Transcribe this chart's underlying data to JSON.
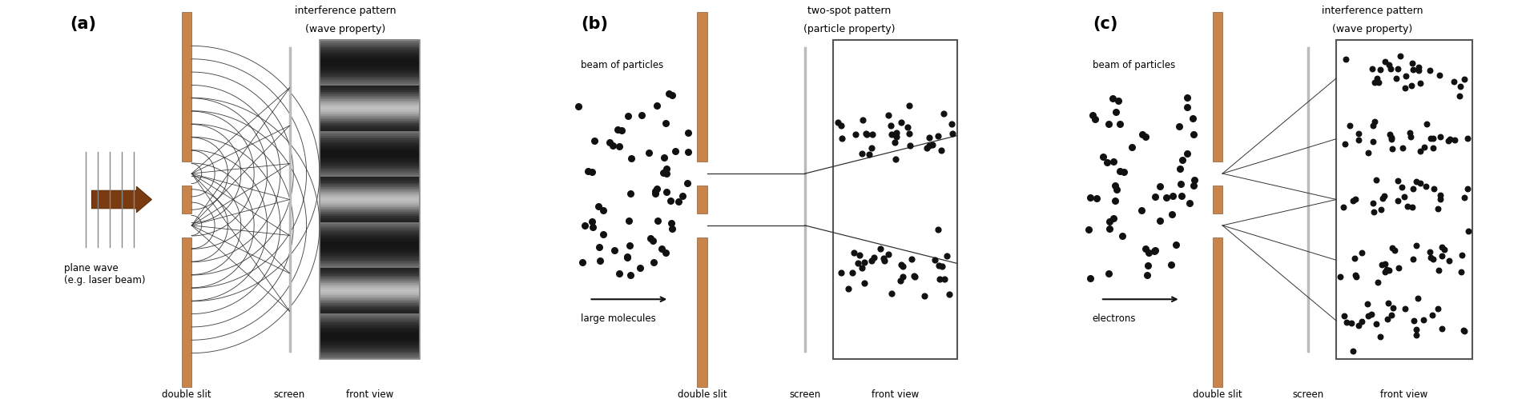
{
  "bg_color": "#ffffff",
  "slit_color": "#c8844a",
  "text_color": "#000000",
  "dot_color": "#111111",
  "panel_a": {
    "label": "(a)",
    "title_line1": "interference pattern",
    "title_line2": "(wave property)",
    "arrow_label": "plane wave\n(e.g. laser beam)",
    "double_slit_label": "double slit",
    "screen_label": "screen",
    "front_view_label": "front view\nof screen"
  },
  "panel_b": {
    "label": "(b)",
    "title_line1": "two-spot pattern",
    "title_line2": "(particle property)",
    "beam_label": "beam of particles",
    "molecule_label": "large molecules",
    "double_slit_label": "double slit",
    "screen_label": "screen",
    "front_view_label": "front view\nof screen"
  },
  "panel_c": {
    "label": "(c)",
    "title_line1": "interference pattern",
    "title_line2": "(wave property)",
    "beam_label": "beam of particles",
    "electron_label": "electrons",
    "double_slit_label": "double slit",
    "screen_label": "screen",
    "front_view_label": "front view\nof screen"
  }
}
